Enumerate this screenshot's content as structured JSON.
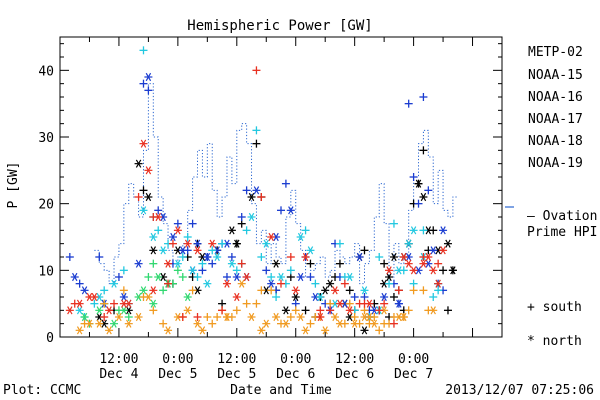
{
  "chart_data": {
    "type": "scatter",
    "title": "Hemispheric Power [GW]",
    "ylabel": "P [GW]",
    "xlabel": "Date and Time",
    "footer_left": "Plot: CCMC",
    "footer_right": "2013/12/07 07:25:06",
    "ylim": [
      0,
      45
    ],
    "yticks": [
      0,
      10,
      20,
      30,
      40
    ],
    "xlim_hours": [
      0,
      90
    ],
    "xticks": [
      {
        "hour": 12,
        "time": "12:00",
        "date": "Dec 4"
      },
      {
        "hour": 24,
        "time": "0:00",
        "date": "Dec 5"
      },
      {
        "hour": 36,
        "time": "12:00",
        "date": "Dec 5"
      },
      {
        "hour": 48,
        "time": "0:00",
        "date": "Dec 6"
      },
      {
        "hour": 60,
        "time": "12:00",
        "date": "Dec 6"
      },
      {
        "hour": 72,
        "time": "0:00",
        "date": "Dec 7"
      }
    ],
    "legend": {
      "series_labels": [
        "METP-02",
        "NOAA-15",
        "NOAA-16",
        "NOAA-17",
        "NOAA-18",
        "NOAA-19"
      ],
      "ovation_label_1": "– Ovation",
      "ovation_label_2": "Prime HPI",
      "south_label": "+ south",
      "north_label": "* north"
    },
    "colors": {
      "METP-02": "#000000",
      "NOAA-15": "#1a3cd0",
      "NOAA-16": "#22c8e0",
      "NOAA-17": "#30d870",
      "NOAA-18": "#f09a20",
      "NOAA-19": "#e83020",
      "ovation": "#2a66d0"
    },
    "ovation": {
      "name": "Ovation Prime HPI",
      "x": [
        7,
        8,
        9,
        10,
        11,
        12,
        13,
        14,
        15,
        16,
        17,
        18,
        19,
        20,
        21,
        22,
        23,
        24,
        25,
        26,
        27,
        28,
        29,
        30,
        31,
        32,
        33,
        34,
        35,
        36,
        37,
        38,
        39,
        40,
        41,
        42,
        43,
        44,
        45,
        46,
        47,
        48,
        49,
        50,
        51,
        52,
        53,
        54,
        55,
        56,
        57,
        58,
        59,
        60,
        61,
        62,
        63,
        64,
        65,
        66,
        67,
        68,
        69,
        70,
        71,
        72,
        73,
        74,
        75,
        76,
        77,
        78,
        79,
        80
      ],
      "y": [
        13,
        11,
        10,
        8,
        12,
        14,
        20,
        23,
        21,
        18,
        28,
        38,
        30,
        21,
        17,
        13,
        11,
        12,
        14,
        19,
        24,
        28,
        24,
        29,
        22,
        18,
        21,
        27,
        23,
        31,
        32,
        29,
        20,
        14,
        16,
        11,
        14,
        12,
        11,
        18,
        22,
        17,
        13,
        9,
        10,
        11,
        12,
        9,
        10,
        13,
        12,
        11,
        12,
        14,
        8,
        11,
        13,
        18,
        23,
        17,
        9,
        14,
        11,
        12,
        19,
        24,
        29,
        31,
        27,
        20,
        25,
        19,
        18,
        21
      ]
    },
    "series": [
      {
        "name": "METP-02",
        "south": {
          "x": [
            11,
            17,
            23,
            26,
            27,
            28,
            32,
            33,
            36,
            37,
            40,
            41,
            44,
            47,
            50,
            51,
            52,
            53,
            56,
            57,
            59,
            60,
            62,
            63,
            64,
            65,
            66,
            67,
            68,
            69,
            70,
            72,
            73,
            74,
            75,
            76,
            78,
            79,
            80
          ],
          "y": [
            4,
            22,
            8,
            12,
            9,
            14,
            13,
            5,
            14,
            17,
            29,
            21,
            7,
            9,
            4,
            11,
            3,
            6,
            9,
            11,
            7,
            4,
            13,
            3,
            5,
            4,
            11,
            3,
            6,
            7,
            4,
            20,
            23,
            28,
            13,
            16,
            10,
            4,
            10
          ]
        },
        "north": {
          "x": [
            8,
            9,
            14,
            16,
            18,
            19,
            21,
            22,
            24,
            28,
            29,
            35,
            36,
            39,
            42,
            44,
            46,
            48,
            54,
            55,
            58,
            59,
            61,
            62,
            66,
            67,
            68,
            70,
            71,
            73,
            74,
            75,
            77,
            79,
            80
          ],
          "y": [
            3,
            2,
            4,
            26,
            21,
            13,
            9,
            8,
            13,
            7,
            12,
            16,
            14,
            21,
            7,
            11,
            4,
            6,
            7,
            8,
            5,
            3,
            12,
            1,
            8,
            9,
            12,
            12,
            14,
            23,
            21,
            16,
            13,
            14,
            10
          ]
        }
      },
      {
        "name": "NOAA-15",
        "south": {
          "x": [
            2,
            4,
            8,
            12,
            17,
            18,
            20,
            23,
            24,
            26,
            27,
            29,
            30,
            31,
            33,
            34,
            35,
            37,
            38,
            42,
            44,
            45,
            46,
            48,
            50,
            51,
            54,
            56,
            57,
            60,
            62,
            63,
            68,
            69,
            71,
            72,
            73,
            74,
            75,
            77,
            78
          ],
          "y": [
            12,
            8,
            12,
            9,
            38,
            37,
            19,
            11,
            17,
            13,
            17,
            10,
            12,
            11,
            14,
            9,
            12,
            18,
            22,
            10,
            7,
            19,
            23,
            5,
            12,
            9,
            5,
            14,
            9,
            6,
            6,
            4,
            8,
            5,
            35,
            24,
            20,
            36,
            22,
            8,
            7
          ]
        },
        "north": {
          "x": [
            3,
            5,
            9,
            13,
            16,
            18,
            21,
            23,
            25,
            27,
            28,
            30,
            32,
            34,
            36,
            38,
            40,
            43,
            44,
            47,
            49,
            52,
            55,
            58,
            61,
            64,
            66,
            69,
            71,
            73,
            75,
            76,
            78
          ],
          "y": [
            9,
            7,
            5,
            6,
            11,
            39,
            18,
            15,
            13,
            10,
            14,
            12,
            13,
            14,
            9,
            9,
            22,
            8,
            15,
            19,
            9,
            6,
            4,
            5,
            12,
            4,
            6,
            5,
            12,
            10,
            11,
            13,
            16
          ]
        }
      },
      {
        "name": "NOAA-16",
        "south": {
          "x": [
            5,
            7,
            9,
            13,
            17,
            19,
            20,
            22,
            25,
            26,
            28,
            29,
            31,
            33,
            36,
            37,
            38,
            40,
            41,
            43,
            44,
            46,
            47,
            50,
            52,
            55,
            57,
            58,
            60,
            63,
            65,
            67,
            68,
            70,
            72,
            74,
            76,
            77
          ],
          "y": [
            3,
            5,
            7,
            10,
            43,
            18,
            16,
            14,
            12,
            15,
            9,
            11,
            13,
            14,
            10,
            11,
            16,
            31,
            12,
            9,
            6,
            8,
            10,
            16,
            8,
            5,
            14,
            9,
            4,
            3,
            12,
            8,
            17,
            10,
            8,
            16,
            6,
            7
          ]
        },
        "north": {
          "x": [
            4,
            8,
            11,
            14,
            17,
            19,
            21,
            24,
            27,
            30,
            32,
            35,
            39,
            42,
            45,
            49,
            51,
            53,
            56,
            59,
            62,
            65,
            69,
            71,
            72,
            74,
            77
          ],
          "y": [
            4,
            6,
            8,
            5,
            19,
            15,
            13,
            11,
            10,
            8,
            12,
            11,
            18,
            14,
            9,
            15,
            13,
            6,
            5,
            9,
            7,
            4,
            10,
            14,
            16,
            12,
            8
          ]
        }
      },
      {
        "name": "NOAA-17",
        "south": {
          "x": [
            6,
            9,
            12,
            14,
            18,
            19,
            21,
            23,
            24,
            25
          ],
          "y": [
            2,
            5,
            4,
            3,
            9,
            11,
            7,
            8,
            10,
            9
          ]
        },
        "north": {
          "x": [
            5,
            8,
            11,
            13,
            16,
            17,
            19,
            20,
            22,
            26
          ],
          "y": [
            3,
            4,
            2,
            4,
            6,
            7,
            5,
            9,
            8,
            6
          ]
        }
      },
      {
        "name": "NOAA-18",
        "south": {
          "x": [
            5,
            9,
            13,
            17,
            19,
            21,
            25,
            27,
            30,
            31,
            32,
            33,
            34,
            35,
            36,
            38,
            40,
            41,
            43,
            45,
            47,
            48,
            51,
            52,
            53,
            55,
            58,
            59,
            60,
            61,
            62,
            63,
            64,
            65,
            66,
            67,
            68,
            70,
            71,
            72,
            74,
            75
          ],
          "y": [
            2,
            5,
            7,
            6,
            4,
            2,
            3,
            7,
            3,
            2,
            3,
            4,
            3,
            3,
            4,
            5,
            5,
            7,
            7,
            2,
            3,
            4,
            2,
            3,
            3,
            5,
            2,
            5,
            3,
            2,
            4,
            2,
            3,
            1,
            2,
            2,
            3,
            3,
            4,
            7,
            7,
            4
          ]
        },
        "north": {
          "x": [
            4,
            6,
            8,
            10,
            12,
            14,
            16,
            18,
            22,
            24,
            26,
            28,
            29,
            34,
            37,
            39,
            41,
            42,
            44,
            46,
            49,
            50,
            54,
            56,
            57,
            60,
            62,
            63,
            64,
            66,
            69,
            70,
            76
          ],
          "y": [
            1,
            2,
            2,
            1,
            3,
            2,
            3,
            6,
            1,
            3,
            4,
            2,
            1,
            3,
            8,
            3,
            1,
            2,
            3,
            2,
            3,
            1,
            1,
            3,
            2,
            2,
            3,
            3,
            2,
            4,
            3,
            3,
            4
          ]
        }
      },
      {
        "name": "NOAA-19",
        "south": {
          "x": [
            3,
            9,
            11,
            16,
            19,
            22,
            23,
            25,
            28,
            33,
            37,
            40,
            41,
            45,
            47,
            53,
            55,
            58,
            61,
            62,
            65,
            66,
            68,
            69,
            74,
            77
          ],
          "y": [
            5,
            3,
            5,
            21,
            18,
            8,
            14,
            3,
            3,
            4,
            11,
            40,
            21,
            8,
            12,
            4,
            4,
            8,
            5,
            5,
            4,
            5,
            2,
            7,
            12,
            11
          ]
        },
        "north": {
          "x": [
            2,
            4,
            6,
            7,
            10,
            13,
            14,
            17,
            18,
            19,
            20,
            22,
            24,
            26,
            28,
            31,
            34,
            36,
            38,
            43,
            48,
            50,
            53,
            56,
            57,
            59,
            63,
            67,
            70,
            71,
            72,
            74,
            75,
            76,
            77,
            78
          ],
          "y": [
            4,
            5,
            6,
            6,
            4,
            5,
            5,
            29,
            25,
            7,
            18,
            11,
            16,
            14,
            13,
            14,
            8,
            6,
            9,
            15,
            7,
            12,
            3,
            7,
            5,
            4,
            5,
            10,
            12,
            11,
            10,
            11,
            12,
            10,
            8,
            13
          ]
        }
      }
    ]
  }
}
